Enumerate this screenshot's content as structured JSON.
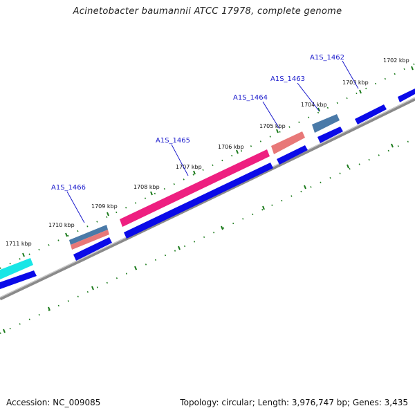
{
  "title": "Acinetobacter baumannii ATCC 17978, complete genome",
  "footer": {
    "accession": "Accession: NC_009085",
    "summary": "Topology: circular; Length: 3,976,747 bp; Genes: 3,435"
  },
  "colors": {
    "backbone": "#8a8a8a",
    "ticks": "#1a7a1a",
    "gene_blue": "#0a0ae8",
    "gene_magenta": "#ee1f80",
    "gene_salmon": "#e87878",
    "gene_steel": "#4a7aa8",
    "gene_cyan": "#19e6e6",
    "label": "#1a1acc"
  },
  "kbp_labels": [
    "1702 kbp",
    "1703 kbp",
    "1704 kbp",
    "1705 kbp",
    "1706 kbp",
    "1707 kbp",
    "1708 kbp",
    "1709 kbp",
    "1710 kbp",
    "1711 kbp"
  ],
  "gene_labels": [
    "A1S_1462",
    "A1S_1463",
    "A1S_1464",
    "A1S_1465",
    "A1S_1466"
  ]
}
